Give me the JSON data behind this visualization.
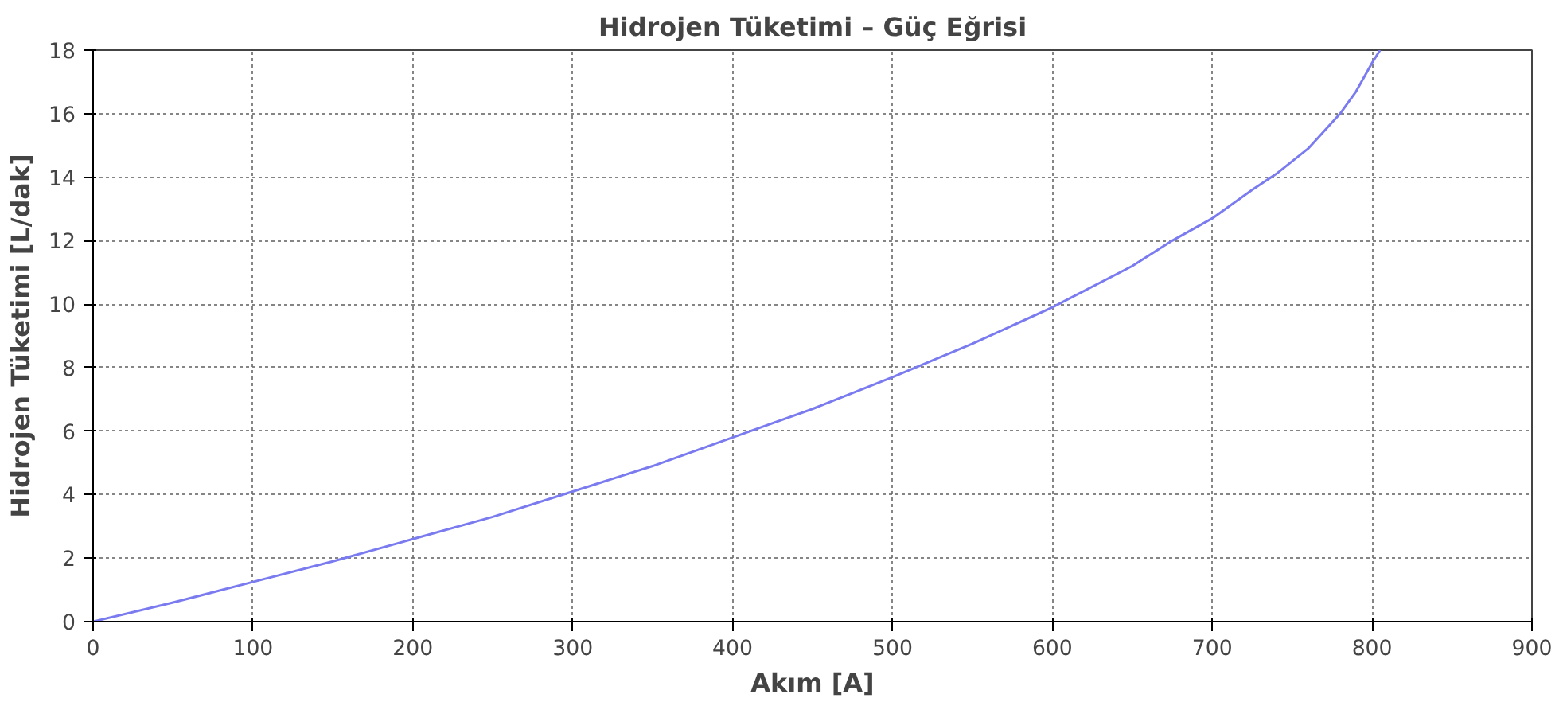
{
  "chart_data": {
    "type": "line",
    "title": "Hidrojen Tüketimi – Güç Eğrisi",
    "xlabel": "Akım [A]",
    "ylabel": "Hidrojen Tüketimi [L/dak]",
    "x": [
      0,
      50,
      100,
      150,
      200,
      250,
      300,
      350,
      400,
      450,
      500,
      550,
      600,
      650,
      675,
      700,
      725,
      740,
      760,
      780,
      790,
      800,
      805
    ],
    "series": [
      {
        "color": "#7b7bf0",
        "values": [
          0,
          0.6,
          1.25,
          1.9,
          2.6,
          3.3,
          4.1,
          4.9,
          5.8,
          6.7,
          7.7,
          8.75,
          9.9,
          11.2,
          12.0,
          12.7,
          13.6,
          14.1,
          14.9,
          16.0,
          16.7,
          17.6,
          18
        ]
      }
    ],
    "xlim": [
      0,
      900
    ],
    "ylim": [
      0,
      18
    ],
    "xticks": [
      0,
      100,
      200,
      300,
      400,
      500,
      600,
      700,
      800,
      900
    ],
    "yticks": [
      0,
      2,
      4,
      6,
      8,
      10,
      12,
      14,
      16,
      18
    ],
    "grid": true,
    "line_style": "solid",
    "marker": "none"
  }
}
